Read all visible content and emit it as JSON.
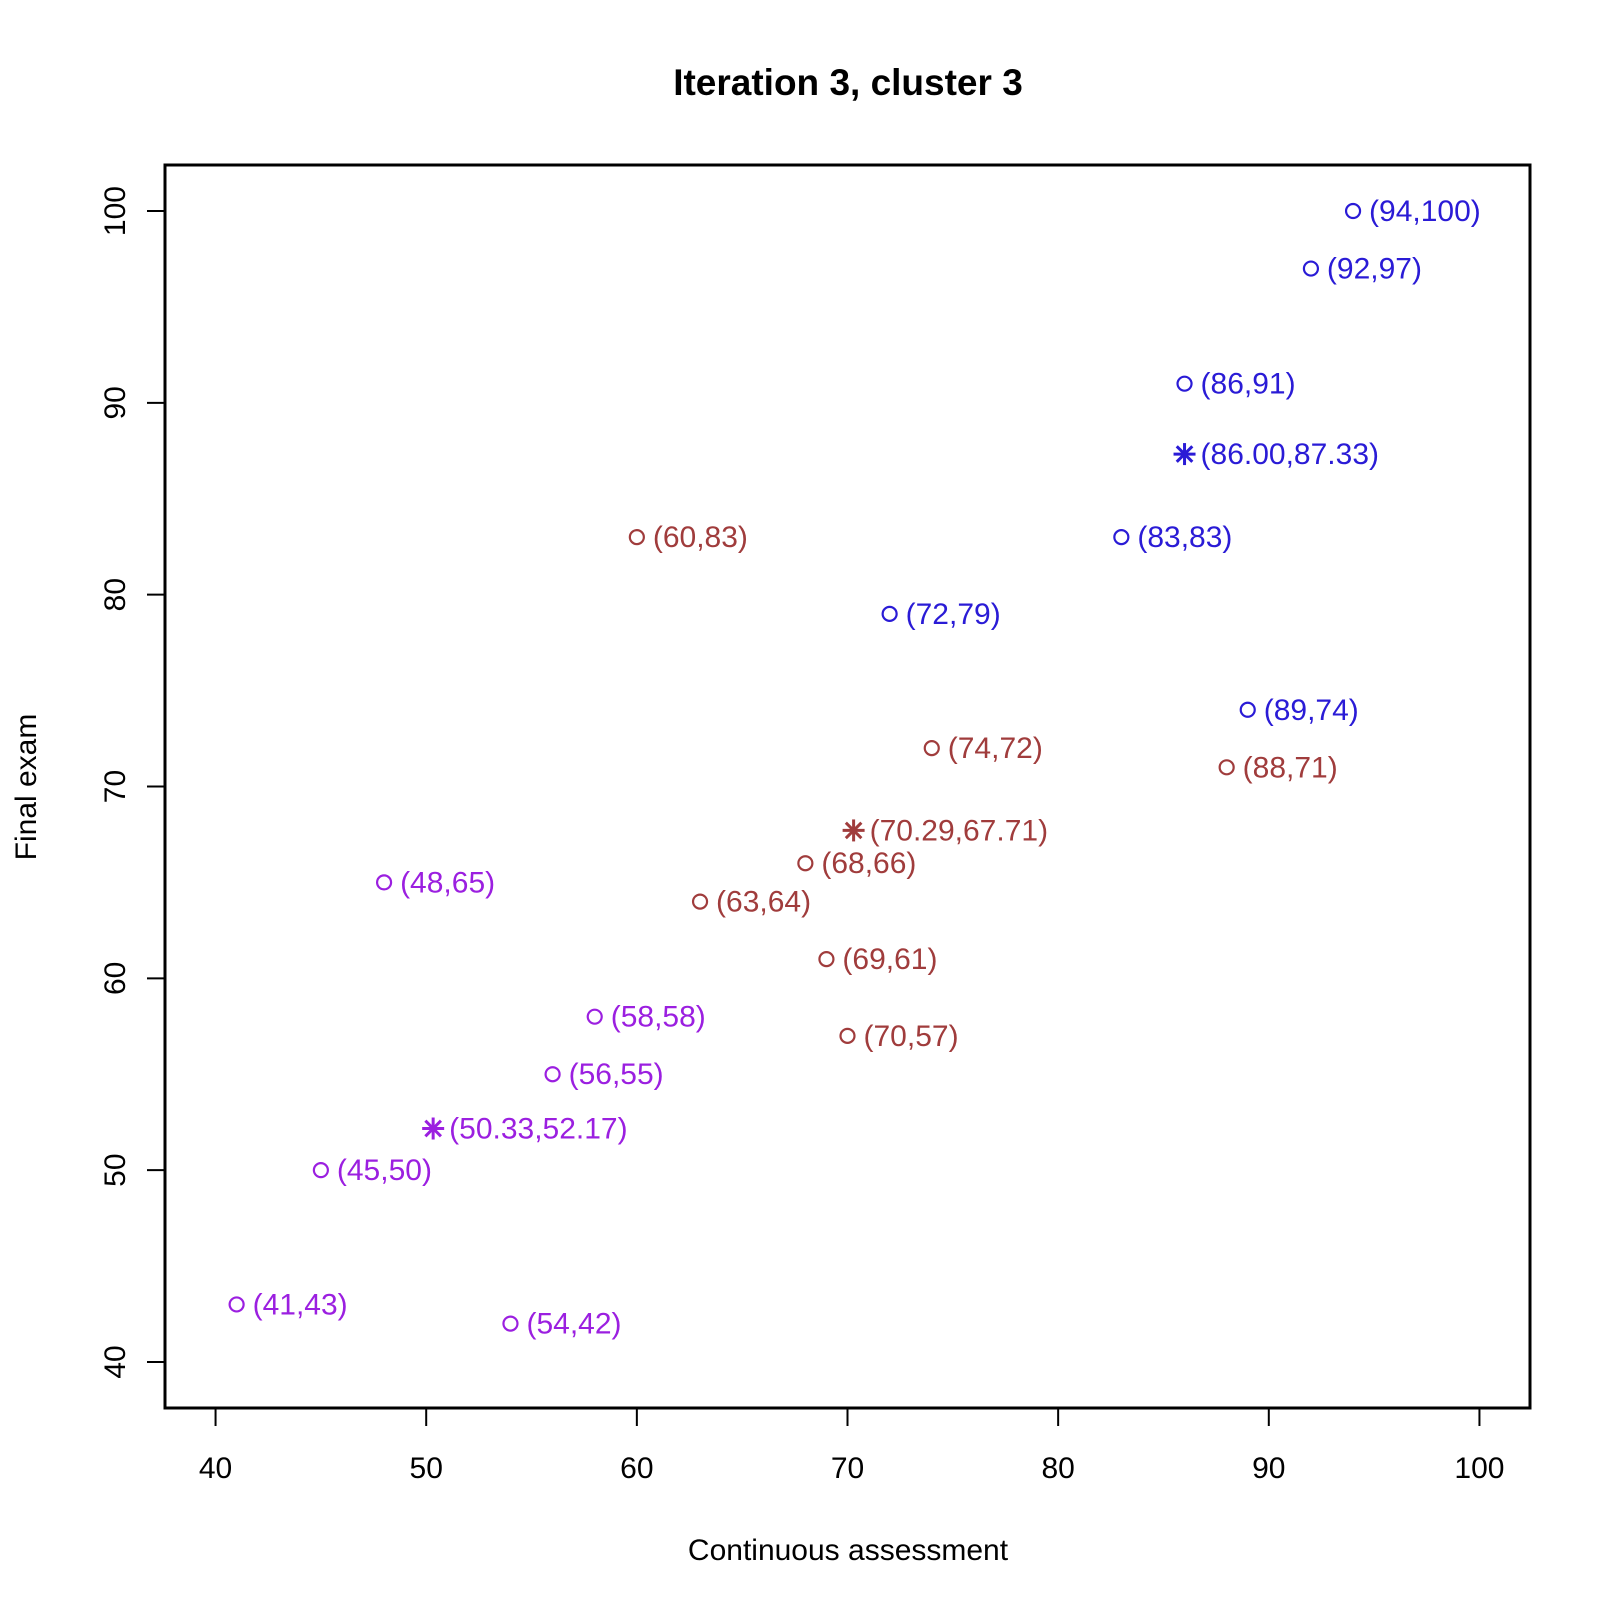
{
  "chart_data": {
    "type": "scatter",
    "title": "Iteration 3, cluster 3",
    "xlabel": "Continuous assessment",
    "ylabel": "Final exam",
    "xlim": [
      37.6,
      102.4
    ],
    "ylim": [
      37.6,
      102.4
    ],
    "x_ticks": [
      40,
      50,
      60,
      70,
      80,
      90,
      100
    ],
    "y_ticks": [
      40,
      50,
      60,
      70,
      80,
      90,
      100
    ],
    "grid": false,
    "series": [
      {
        "color": "#2a1bd6",
        "points": [
          {
            "x": 94,
            "y": 100,
            "label": "(94,100)"
          },
          {
            "x": 92,
            "y": 97,
            "label": "(92,97)"
          },
          {
            "x": 86,
            "y": 91,
            "label": "(86,91)"
          },
          {
            "x": 83,
            "y": 83,
            "label": "(83,83)"
          },
          {
            "x": 72,
            "y": 79,
            "label": "(72,79)"
          },
          {
            "x": 89,
            "y": 74,
            "label": "(89,74)"
          }
        ],
        "centroid": {
          "x": 86.0,
          "y": 87.33,
          "label": "(86.00,87.33)"
        }
      },
      {
        "color": "#a03c3c",
        "points": [
          {
            "x": 60,
            "y": 83,
            "label": "(60,83)"
          },
          {
            "x": 74,
            "y": 72,
            "label": "(74,72)"
          },
          {
            "x": 88,
            "y": 71,
            "label": "(88,71)"
          },
          {
            "x": 68,
            "y": 66,
            "label": "(68,66)"
          },
          {
            "x": 63,
            "y": 64,
            "label": "(63,64)"
          },
          {
            "x": 69,
            "y": 61,
            "label": "(69,61)"
          },
          {
            "x": 70,
            "y": 57,
            "label": "(70,57)"
          }
        ],
        "centroid": {
          "x": 70.29,
          "y": 67.71,
          "label": "(70.29,67.71)"
        }
      },
      {
        "color": "#9b1fe0",
        "points": [
          {
            "x": 48,
            "y": 65,
            "label": "(48,65)"
          },
          {
            "x": 58,
            "y": 58,
            "label": "(58,58)"
          },
          {
            "x": 56,
            "y": 55,
            "label": "(56,55)"
          },
          {
            "x": 45,
            "y": 50,
            "label": "(45,50)"
          },
          {
            "x": 41,
            "y": 43,
            "label": "(41,43)"
          },
          {
            "x": 54,
            "y": 42,
            "label": "(54,42)"
          }
        ],
        "centroid": {
          "x": 50.33,
          "y": 52.17,
          "label": "(50.33,52.17)"
        }
      }
    ]
  }
}
